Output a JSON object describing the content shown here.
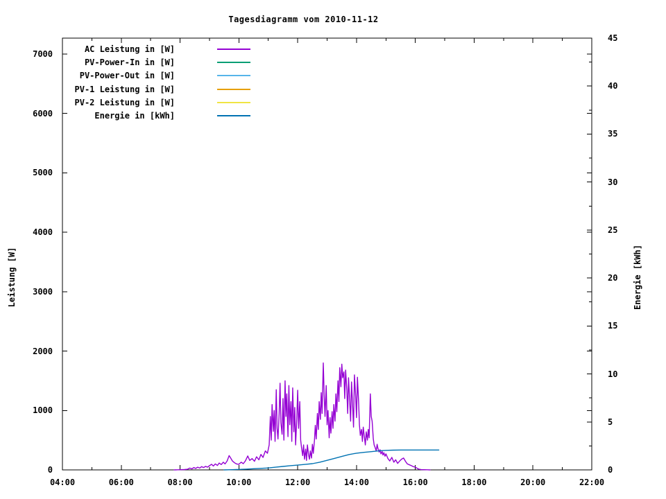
{
  "title": "Tagesdiagramm vom 2010-11-12",
  "chart_data": {
    "type": "line",
    "title": "Tagesdiagramm vom 2010-11-12",
    "xlabel": "",
    "ylabel_left": "Leistung [W]",
    "ylabel_right": "Energie [kWh]",
    "grid": false,
    "x_axis": {
      "unit": "time-of-day",
      "start_hour": 4,
      "end_hour": 22,
      "major_tick_hours": 2,
      "minor_tick_hours": 1,
      "tick_labels": [
        "04:00",
        "06:00",
        "08:00",
        "10:00",
        "12:00",
        "14:00",
        "16:00",
        "18:00",
        "20:00",
        "22:00"
      ]
    },
    "y_axis_left": {
      "label": "Leistung [W]",
      "min": 0,
      "max": 7268,
      "tick_step": 1000,
      "tick_labels": [
        "0",
        "1000",
        "2000",
        "3000",
        "4000",
        "5000",
        "6000",
        "7000"
      ]
    },
    "y_axis_right": {
      "label": "Energie [kWh]",
      "min": 0,
      "max": 45,
      "tick_step": 5,
      "minor_tick_step": 2.5,
      "tick_labels": [
        "0",
        "5",
        "10",
        "15",
        "20",
        "25",
        "30",
        "35",
        "40",
        "45"
      ]
    },
    "legend": {
      "position": "top-left-inside",
      "entries": [
        {
          "label": "AC Leistung in [W]",
          "color": "#9400d3"
        },
        {
          "label": "PV-Power-In in [W]",
          "color": "#009e73"
        },
        {
          "label": "PV-Power-Out in [W]",
          "color": "#56b4e9"
        },
        {
          "label": "PV-1 Leistung in [W]",
          "color": "#e69f00"
        },
        {
          "label": "PV-2 Leistung in [W]",
          "color": "#f0e442"
        },
        {
          "label": "Energie in [kWh]",
          "color": "#0072b2"
        }
      ]
    },
    "series": [
      {
        "name": "AC Leistung in [W]",
        "color": "#9400d3",
        "axis": "left",
        "unit": "W",
        "points": [
          [
            7.8,
            0
          ],
          [
            8.0,
            4
          ],
          [
            8.15,
            6
          ],
          [
            8.25,
            10
          ],
          [
            8.33,
            30
          ],
          [
            8.4,
            18
          ],
          [
            8.47,
            40
          ],
          [
            8.53,
            25
          ],
          [
            8.6,
            45
          ],
          [
            8.67,
            30
          ],
          [
            8.73,
            55
          ],
          [
            8.8,
            40
          ],
          [
            8.87,
            60
          ],
          [
            8.93,
            45
          ],
          [
            9.0,
            70
          ],
          [
            9.07,
            95
          ],
          [
            9.13,
            65
          ],
          [
            9.2,
            100
          ],
          [
            9.27,
            75
          ],
          [
            9.33,
            115
          ],
          [
            9.4,
            90
          ],
          [
            9.47,
            130
          ],
          [
            9.53,
            100
          ],
          [
            9.6,
            150
          ],
          [
            9.67,
            240
          ],
          [
            9.72,
            200
          ],
          [
            9.78,
            150
          ],
          [
            9.85,
            120
          ],
          [
            9.92,
            100
          ],
          [
            10.0,
            95
          ],
          [
            10.08,
            130
          ],
          [
            10.15,
            105
          ],
          [
            10.22,
            150
          ],
          [
            10.3,
            235
          ],
          [
            10.37,
            160
          ],
          [
            10.45,
            190
          ],
          [
            10.53,
            145
          ],
          [
            10.6,
            220
          ],
          [
            10.68,
            170
          ],
          [
            10.75,
            260
          ],
          [
            10.82,
            210
          ],
          [
            10.9,
            320
          ],
          [
            10.97,
            280
          ],
          [
            11.03,
            420
          ],
          [
            11.07,
            900
          ],
          [
            11.1,
            500
          ],
          [
            11.13,
            1100
          ],
          [
            11.17,
            650
          ],
          [
            11.2,
            1000
          ],
          [
            11.23,
            480
          ],
          [
            11.27,
            1350
          ],
          [
            11.3,
            700
          ],
          [
            11.33,
            520
          ],
          [
            11.37,
            950
          ],
          [
            11.4,
            1460
          ],
          [
            11.43,
            800
          ],
          [
            11.47,
            600
          ],
          [
            11.5,
            1200
          ],
          [
            11.53,
            500
          ],
          [
            11.57,
            1500
          ],
          [
            11.6,
            900
          ],
          [
            11.63,
            1280
          ],
          [
            11.67,
            560
          ],
          [
            11.7,
            1420
          ],
          [
            11.73,
            760
          ],
          [
            11.77,
            1150
          ],
          [
            11.8,
            480
          ],
          [
            11.83,
            1380
          ],
          [
            11.87,
            640
          ],
          [
            11.9,
            1050
          ],
          [
            11.93,
            420
          ],
          [
            11.97,
            860
          ],
          [
            12.0,
            1340
          ],
          [
            12.03,
            700
          ],
          [
            12.07,
            1150
          ],
          [
            12.1,
            500
          ],
          [
            12.13,
            380
          ],
          [
            12.17,
            240
          ],
          [
            12.2,
            420
          ],
          [
            12.23,
            180
          ],
          [
            12.27,
            350
          ],
          [
            12.3,
            160
          ],
          [
            12.33,
            420
          ],
          [
            12.37,
            250
          ],
          [
            12.4,
            180
          ],
          [
            12.43,
            320
          ],
          [
            12.47,
            200
          ],
          [
            12.5,
            430
          ],
          [
            12.53,
            280
          ],
          [
            12.57,
            500
          ],
          [
            12.6,
            750
          ],
          [
            12.63,
            520
          ],
          [
            12.67,
            950
          ],
          [
            12.7,
            680
          ],
          [
            12.73,
            1150
          ],
          [
            12.77,
            850
          ],
          [
            12.8,
            1300
          ],
          [
            12.83,
            950
          ],
          [
            12.87,
            1800
          ],
          [
            12.9,
            1250
          ],
          [
            12.93,
            900
          ],
          [
            12.97,
            1420
          ],
          [
            13.0,
            760
          ],
          [
            13.03,
            1000
          ],
          [
            13.07,
            540
          ],
          [
            13.1,
            880
          ],
          [
            13.13,
            620
          ],
          [
            13.17,
            980
          ],
          [
            13.2,
            700
          ],
          [
            13.23,
            1100
          ],
          [
            13.27,
            820
          ],
          [
            13.3,
            1280
          ],
          [
            13.33,
            980
          ],
          [
            13.37,
            1500
          ],
          [
            13.4,
            1150
          ],
          [
            13.43,
            1720
          ],
          [
            13.47,
            1400
          ],
          [
            13.5,
            1780
          ],
          [
            13.53,
            1550
          ],
          [
            13.57,
            1650
          ],
          [
            13.6,
            1200
          ],
          [
            13.63,
            1680
          ],
          [
            13.67,
            1350
          ],
          [
            13.7,
            950
          ],
          [
            13.73,
            1550
          ],
          [
            13.77,
            1150
          ],
          [
            13.8,
            820
          ],
          [
            13.83,
            1480
          ],
          [
            13.87,
            1050
          ],
          [
            13.9,
            720
          ],
          [
            13.93,
            1600
          ],
          [
            13.97,
            1250
          ],
          [
            14.0,
            880
          ],
          [
            14.03,
            1560
          ],
          [
            14.07,
            1150
          ],
          [
            14.1,
            760
          ],
          [
            14.13,
            580
          ],
          [
            14.17,
            680
          ],
          [
            14.2,
            480
          ],
          [
            14.23,
            720
          ],
          [
            14.27,
            550
          ],
          [
            14.3,
            420
          ],
          [
            14.33,
            640
          ],
          [
            14.37,
            500
          ],
          [
            14.4,
            680
          ],
          [
            14.43,
            540
          ],
          [
            14.47,
            1280
          ],
          [
            14.5,
            900
          ],
          [
            14.53,
            820
          ],
          [
            14.57,
            520
          ],
          [
            14.6,
            420
          ],
          [
            14.63,
            380
          ],
          [
            14.67,
            320
          ],
          [
            14.7,
            430
          ],
          [
            14.73,
            360
          ],
          [
            14.77,
            300
          ],
          [
            14.8,
            340
          ],
          [
            14.83,
            270
          ],
          [
            14.87,
            310
          ],
          [
            14.9,
            250
          ],
          [
            14.93,
            290
          ],
          [
            14.97,
            230
          ],
          [
            15.0,
            270
          ],
          [
            15.07,
            190
          ],
          [
            15.13,
            150
          ],
          [
            15.2,
            210
          ],
          [
            15.27,
            130
          ],
          [
            15.33,
            170
          ],
          [
            15.4,
            110
          ],
          [
            15.47,
            150
          ],
          [
            15.53,
            180
          ],
          [
            15.6,
            200
          ],
          [
            15.67,
            140
          ],
          [
            15.73,
            100
          ],
          [
            15.8,
            85
          ],
          [
            15.87,
            70
          ],
          [
            15.93,
            55
          ],
          [
            16.0,
            45
          ],
          [
            16.07,
            25
          ],
          [
            16.13,
            10
          ],
          [
            16.2,
            5
          ],
          [
            16.3,
            3
          ],
          [
            16.4,
            2
          ],
          [
            16.5,
            0
          ]
        ]
      },
      {
        "name": "PV-Power-In in [W]",
        "color": "#009e73",
        "axis": "left",
        "unit": "W",
        "points": []
      },
      {
        "name": "PV-Power-Out in [W]",
        "color": "#56b4e9",
        "axis": "left",
        "unit": "W",
        "points": []
      },
      {
        "name": "PV-1 Leistung in [W]",
        "color": "#e69f00",
        "axis": "left",
        "unit": "W",
        "points": []
      },
      {
        "name": "PV-2 Leistung in [W]",
        "color": "#f0e442",
        "axis": "left",
        "unit": "W",
        "points": []
      },
      {
        "name": "Energie in [kWh]",
        "color": "#0072b2",
        "axis": "right",
        "unit": "kWh",
        "points": [
          [
            9.5,
            0.0
          ],
          [
            9.75,
            0.02
          ],
          [
            10.0,
            0.05
          ],
          [
            10.25,
            0.08
          ],
          [
            10.5,
            0.12
          ],
          [
            10.75,
            0.16
          ],
          [
            11.0,
            0.2
          ],
          [
            11.25,
            0.28
          ],
          [
            11.5,
            0.36
          ],
          [
            11.75,
            0.44
          ],
          [
            12.0,
            0.5
          ],
          [
            12.25,
            0.57
          ],
          [
            12.5,
            0.65
          ],
          [
            12.75,
            0.8
          ],
          [
            13.0,
            1.0
          ],
          [
            13.25,
            1.2
          ],
          [
            13.5,
            1.4
          ],
          [
            13.75,
            1.6
          ],
          [
            14.0,
            1.74
          ],
          [
            14.25,
            1.83
          ],
          [
            14.5,
            1.9
          ],
          [
            14.75,
            1.98
          ],
          [
            15.0,
            2.04
          ],
          [
            15.25,
            2.06
          ],
          [
            15.5,
            2.07
          ],
          [
            16.0,
            2.07
          ],
          [
            16.5,
            2.07
          ],
          [
            16.8,
            2.07
          ]
        ]
      }
    ]
  }
}
